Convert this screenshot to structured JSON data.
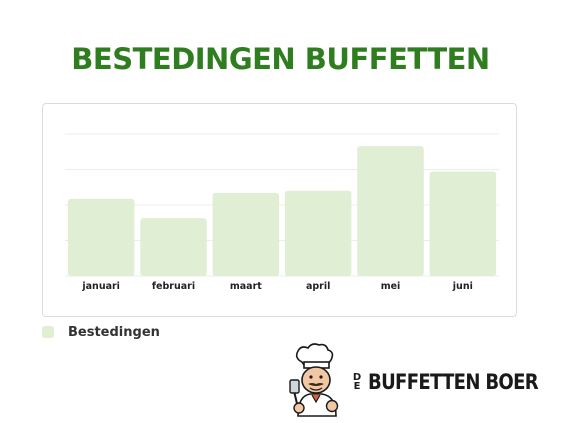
{
  "title": "BESTEDINGEN BUFFETTEN",
  "colors": {
    "title": "#2e7d1f",
    "bar": "#e0eed4",
    "grid": "#ececec"
  },
  "chart_data": {
    "type": "bar",
    "title": "BESTEDINGEN BUFFETTEN",
    "categories": [
      "januari",
      "februari",
      "maart",
      "april",
      "mei",
      "juni"
    ],
    "series": [
      {
        "name": "Bestedingen",
        "values": [
          76,
          57,
          82,
          84,
          128,
          103
        ]
      }
    ],
    "ylim": [
      0,
      140
    ],
    "gridlines": [
      35,
      70,
      105,
      140
    ],
    "grid": true,
    "show_y_ticks": false,
    "legend": "bottom-left"
  },
  "legend": {
    "label": "Bestedingen"
  },
  "logo": {
    "prefix": "DE",
    "name": "BUFFETTEN BOER"
  }
}
